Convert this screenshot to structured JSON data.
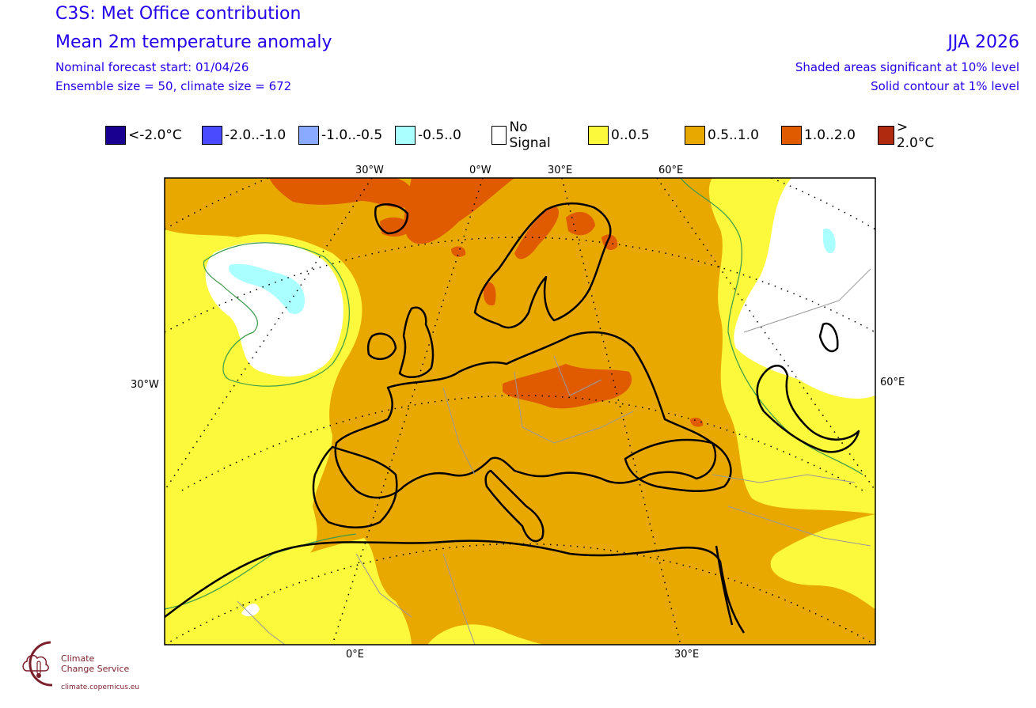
{
  "header": {
    "title_line1": "C3S: Met Office contribution",
    "title_line2": "Mean 2m temperature anomaly",
    "forecast_start": "Nominal forecast start: 01/04/26",
    "ensemble": "Ensemble size = 50, climate size = 672",
    "season": "JJA 2026",
    "significance": "Shaded areas significant at 10% level",
    "contour": "Solid contour at 1% level"
  },
  "legend": [
    {
      "label": "<-2.0°C",
      "color": "#1a0090"
    },
    {
      "label": "-2.0..-1.0",
      "color": "#4a4aff"
    },
    {
      "label": "-1.0..-0.5",
      "color": "#8aaaff"
    },
    {
      "label": "-0.5..0",
      "color": "#aaffff"
    },
    {
      "label": "No Signal",
      "color": "#ffffff"
    },
    {
      "label": "0..0.5",
      "color": "#fcf83c"
    },
    {
      "label": "0.5..1.0",
      "color": "#e8a800"
    },
    {
      "label": "1.0..2.0",
      "color": "#e05a00"
    },
    {
      "label": "> 2.0°C",
      "color": "#b02a10"
    }
  ],
  "map": {
    "top_lon_labels": [
      "30°W",
      "0°W",
      "30°E",
      "60°E"
    ],
    "bottom_lon_labels": [
      "0°E",
      "30°E"
    ],
    "left_lat_label": "30°W",
    "right_lat_label": "60°E"
  },
  "logo": {
    "name_line1": "Climate",
    "name_line2": "Change Service",
    "url": "climate.copernicus.eu",
    "color": "#7a1f2b"
  }
}
